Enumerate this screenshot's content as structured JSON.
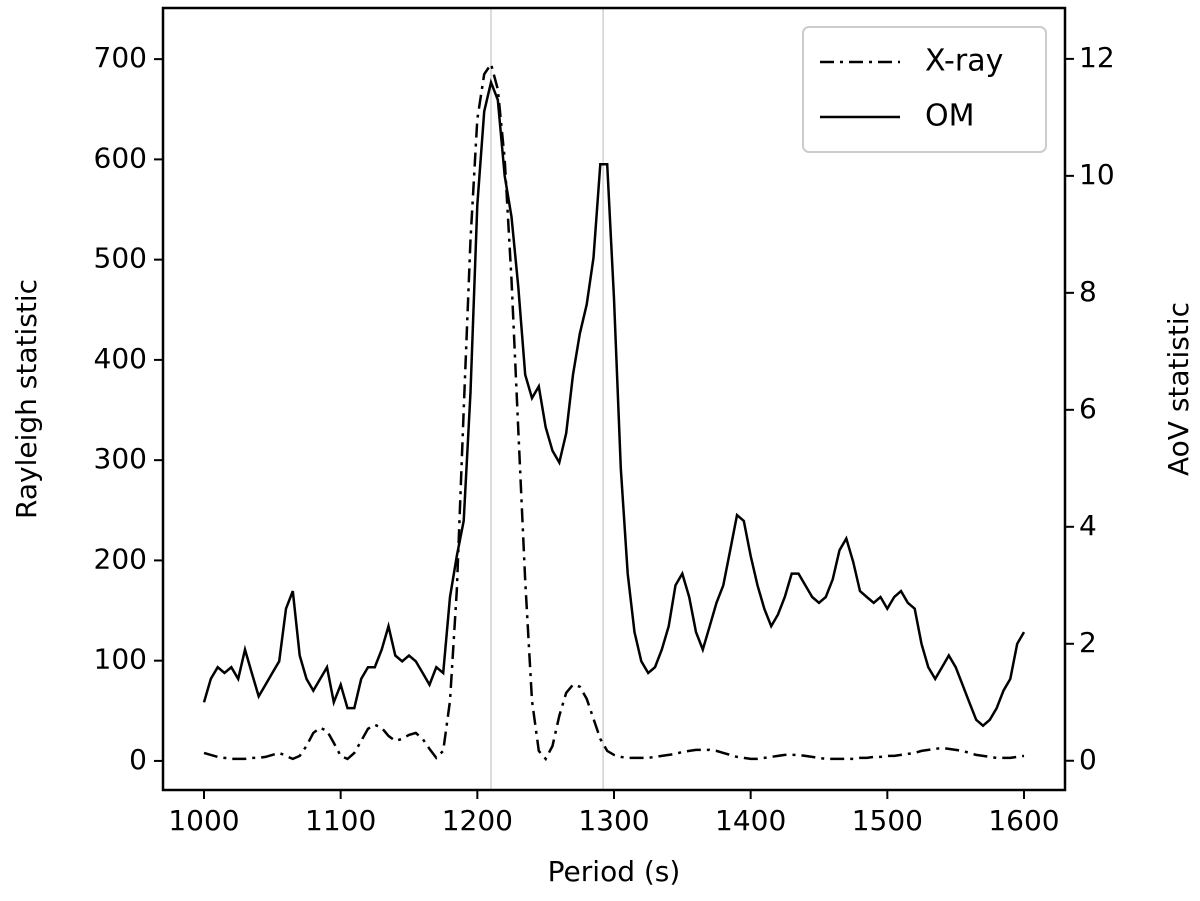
{
  "chart_data": {
    "type": "line",
    "xlabel": "Period (s)",
    "ylabel": "Rayleigh statistic",
    "y2label": "AoV statistic",
    "x": [
      1000,
      1005,
      1010,
      1015,
      1020,
      1025,
      1030,
      1035,
      1040,
      1045,
      1050,
      1055,
      1060,
      1065,
      1070,
      1075,
      1080,
      1085,
      1090,
      1095,
      1100,
      1105,
      1110,
      1115,
      1120,
      1125,
      1130,
      1135,
      1140,
      1145,
      1150,
      1155,
      1160,
      1165,
      1170,
      1175,
      1180,
      1185,
      1190,
      1195,
      1200,
      1205,
      1210,
      1215,
      1220,
      1225,
      1230,
      1235,
      1240,
      1245,
      1250,
      1255,
      1260,
      1265,
      1270,
      1275,
      1280,
      1285,
      1290,
      1295,
      1300,
      1305,
      1310,
      1315,
      1320,
      1325,
      1330,
      1335,
      1340,
      1345,
      1350,
      1355,
      1360,
      1365,
      1370,
      1375,
      1380,
      1385,
      1390,
      1395,
      1400,
      1405,
      1410,
      1415,
      1420,
      1425,
      1430,
      1435,
      1440,
      1445,
      1450,
      1455,
      1460,
      1465,
      1470,
      1475,
      1480,
      1485,
      1490,
      1495,
      1500,
      1505,
      1510,
      1515,
      1520,
      1525,
      1530,
      1535,
      1540,
      1545,
      1550,
      1555,
      1560,
      1565,
      1570,
      1575,
      1580,
      1585,
      1590,
      1595,
      1600
    ],
    "series": [
      {
        "name": "X-ray",
        "color": "#000000",
        "style": "dash-dot",
        "axis": "y",
        "values": [
          8,
          6,
          4,
          3,
          2,
          2,
          2,
          3,
          3,
          4,
          6,
          8,
          5,
          2,
          5,
          15,
          28,
          33,
          30,
          18,
          5,
          2,
          8,
          20,
          32,
          36,
          33,
          25,
          20,
          22,
          26,
          28,
          22,
          12,
          3,
          10,
          60,
          170,
          350,
          520,
          640,
          685,
          695,
          670,
          600,
          480,
          330,
          180,
          60,
          10,
          2,
          15,
          45,
          68,
          76,
          74,
          62,
          42,
          22,
          10,
          6,
          4,
          3,
          3,
          3,
          3,
          4,
          5,
          6,
          7,
          9,
          10,
          11,
          11,
          11,
          10,
          8,
          6,
          4,
          3,
          2,
          2,
          3,
          4,
          5,
          6,
          6,
          6,
          5,
          4,
          3,
          2,
          2,
          2,
          2,
          2,
          3,
          3,
          4,
          4,
          5,
          5,
          6,
          7,
          8,
          10,
          11,
          12,
          13,
          12,
          11,
          10,
          8,
          6,
          5,
          4,
          3,
          3,
          3,
          4,
          5
        ]
      },
      {
        "name": "OM",
        "color": "#000000",
        "style": "solid",
        "axis": "y2",
        "values": [
          1.0,
          1.4,
          1.6,
          1.5,
          1.6,
          1.4,
          1.9,
          1.5,
          1.1,
          1.3,
          1.5,
          1.7,
          2.6,
          2.9,
          1.8,
          1.4,
          1.2,
          1.4,
          1.6,
          1.0,
          1.3,
          0.9,
          0.9,
          1.4,
          1.6,
          1.6,
          1.9,
          2.3,
          1.8,
          1.7,
          1.8,
          1.7,
          1.5,
          1.3,
          1.6,
          1.5,
          2.8,
          3.5,
          4.1,
          6.3,
          9.5,
          11.1,
          11.6,
          11.3,
          10.0,
          9.3,
          8.1,
          6.6,
          6.2,
          6.4,
          5.7,
          5.3,
          5.1,
          5.6,
          6.6,
          7.3,
          7.8,
          8.6,
          10.2,
          10.2,
          7.9,
          5.0,
          3.2,
          2.2,
          1.7,
          1.5,
          1.6,
          1.9,
          2.3,
          3.0,
          3.2,
          2.8,
          2.2,
          1.9,
          2.3,
          2.7,
          3.0,
          3.6,
          4.2,
          4.1,
          3.5,
          3.0,
          2.6,
          2.3,
          2.5,
          2.8,
          3.2,
          3.2,
          3.0,
          2.8,
          2.7,
          2.8,
          3.1,
          3.6,
          3.8,
          3.4,
          2.9,
          2.8,
          2.7,
          2.8,
          2.6,
          2.8,
          2.9,
          2.7,
          2.6,
          2.0,
          1.6,
          1.4,
          1.6,
          1.8,
          1.6,
          1.3,
          1.0,
          0.7,
          0.6,
          0.7,
          0.9,
          1.2,
          1.4,
          2.0,
          2.2
        ]
      }
    ],
    "vlines": [
      1210,
      1292
    ],
    "vline_color": "#bbbbbb",
    "xlim": [
      970,
      1630
    ],
    "xticks": [
      1000,
      1100,
      1200,
      1300,
      1400,
      1500,
      1600
    ],
    "ylim": [
      -29,
      751
    ],
    "yticks": [
      0,
      100,
      200,
      300,
      400,
      500,
      600,
      700
    ],
    "y2lim": [
      -0.5,
      12.87
    ],
    "y2ticks": [
      0,
      2,
      4,
      6,
      8,
      10,
      12
    ],
    "legend": "upper right"
  }
}
